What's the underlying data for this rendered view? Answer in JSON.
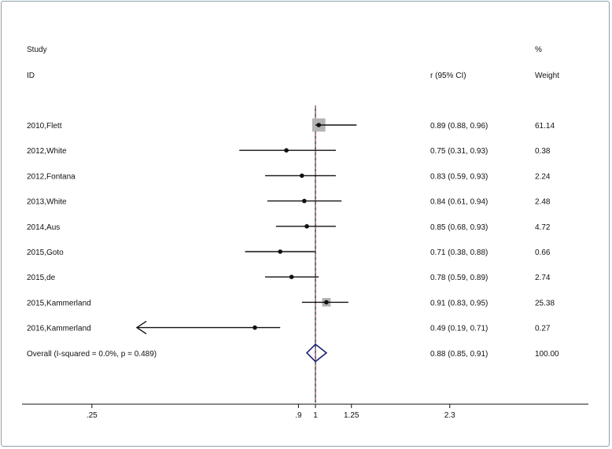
{
  "headers": {
    "study_line1": "Study",
    "study_line2": "ID",
    "effect": "r (95% CI)",
    "weight_line1": "%",
    "weight_line2": "Weight"
  },
  "chart_data": {
    "type": "forest",
    "scale": "Fisher-z (log-like) axis",
    "null_value": 1,
    "pooled_estimate_line": 0.88,
    "x_ticks": [
      ".25",
      ".9",
      "1",
      "1.25",
      "2.3"
    ],
    "x_tick_values": [
      0.25,
      0.9,
      1,
      1.25,
      2.3
    ],
    "studies": [
      {
        "id": "2010,Flett",
        "est": 0.89,
        "lo": 0.88,
        "hi": 0.96,
        "ci": "0.89 (0.88, 0.96)",
        "weight": "61.14",
        "w": 61.14
      },
      {
        "id": "2012,White",
        "est": 0.75,
        "lo": 0.31,
        "hi": 0.93,
        "ci": "0.75 (0.31, 0.93)",
        "weight": "0.38",
        "w": 0.38
      },
      {
        "id": "2012,Fontana",
        "est": 0.83,
        "lo": 0.59,
        "hi": 0.93,
        "ci": "0.83 (0.59, 0.93)",
        "weight": "2.24",
        "w": 2.24
      },
      {
        "id": "2013,White",
        "est": 0.84,
        "lo": 0.61,
        "hi": 0.94,
        "ci": "0.84 (0.61, 0.94)",
        "weight": "2.48",
        "w": 2.48
      },
      {
        "id": "2014,Aus",
        "est": 0.85,
        "lo": 0.68,
        "hi": 0.93,
        "ci": "0.85 (0.68, 0.93)",
        "weight": "4.72",
        "w": 4.72
      },
      {
        "id": "2015,Goto",
        "est": 0.71,
        "lo": 0.38,
        "hi": 0.88,
        "ci": "0.71 (0.38, 0.88)",
        "weight": "0.66",
        "w": 0.66
      },
      {
        "id": "2015,de",
        "est": 0.78,
        "lo": 0.59,
        "hi": 0.89,
        "ci": "0.78 (0.59, 0.89)",
        "weight": "2.74",
        "w": 2.74
      },
      {
        "id": "2015,Kammerland",
        "est": 0.91,
        "lo": 0.83,
        "hi": 0.95,
        "ci": "0.91 (0.83, 0.95)",
        "weight": "25.38",
        "w": 25.38
      },
      {
        "id": "2016,Kammerland",
        "est": 0.49,
        "lo": 0.19,
        "hi": 0.71,
        "ci": "0.49 (0.19, 0.71)",
        "weight": "0.27",
        "w": 0.27,
        "arrow_left": true
      }
    ],
    "overall": {
      "label": "Overall  (I-squared = 0.0%, p = 0.489)",
      "est": 0.88,
      "lo": 0.85,
      "hi": 0.91,
      "ci": "0.88 (0.85, 0.91)",
      "weight": "100.00"
    }
  },
  "colors": {
    "ci_line": "#111111",
    "weight_box": "#b3b3b3",
    "diamond": "#1a1f7a",
    "pooled_dash": "#b03a3a",
    "frame": "#8aa1b1"
  }
}
